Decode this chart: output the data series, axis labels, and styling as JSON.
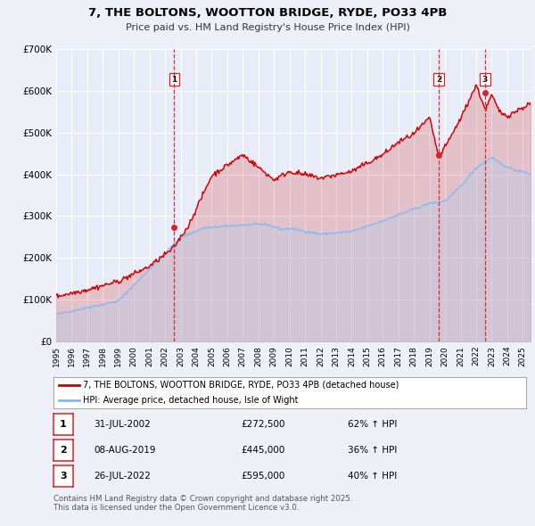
{
  "title": "7, THE BOLTONS, WOOTTON BRIDGE, RYDE, PO33 4PB",
  "subtitle": "Price paid vs. HM Land Registry's House Price Index (HPI)",
  "ylim": [
    0,
    700000
  ],
  "xlim_start": 1995.0,
  "xlim_end": 2025.5,
  "yticks": [
    0,
    100000,
    200000,
    300000,
    400000,
    500000,
    600000,
    700000
  ],
  "ytick_labels": [
    "£0",
    "£100K",
    "£200K",
    "£300K",
    "£400K",
    "£500K",
    "£600K",
    "£700K"
  ],
  "xticks": [
    1995,
    1996,
    1997,
    1998,
    1999,
    2000,
    2001,
    2002,
    2003,
    2004,
    2005,
    2006,
    2007,
    2008,
    2009,
    2010,
    2011,
    2012,
    2013,
    2014,
    2015,
    2016,
    2017,
    2018,
    2019,
    2020,
    2021,
    2022,
    2023,
    2024,
    2025
  ],
  "bg_color": "#eef0f8",
  "plot_bg_color": "#e8ecf8",
  "grid_color": "#ffffff",
  "line1_color": "#cc0000",
  "line2_color": "#88bbee",
  "fill1_color": "#cc0000",
  "fill2_color": "#aaccee",
  "sale_vline_color": "#dd2222",
  "legend1_label": "7, THE BOLTONS, WOOTTON BRIDGE, RYDE, PO33 4PB (detached house)",
  "legend2_label": "HPI: Average price, detached house, Isle of Wight",
  "sales": [
    {
      "num": 1,
      "date_x": 2002.58,
      "price": 272500,
      "date_str": "31-JUL-2002",
      "price_str": "£272,500",
      "hpi_str": "62% ↑ HPI"
    },
    {
      "num": 2,
      "date_x": 2019.6,
      "price": 445000,
      "date_str": "08-AUG-2019",
      "price_str": "£445,000",
      "hpi_str": "36% ↑ HPI"
    },
    {
      "num": 3,
      "date_x": 2022.57,
      "price": 595000,
      "date_str": "26-JUL-2022",
      "price_str": "£595,000",
      "hpi_str": "40% ↑ HPI"
    }
  ],
  "footer": "Contains HM Land Registry data © Crown copyright and database right 2025.\nThis data is licensed under the Open Government Licence v3.0."
}
